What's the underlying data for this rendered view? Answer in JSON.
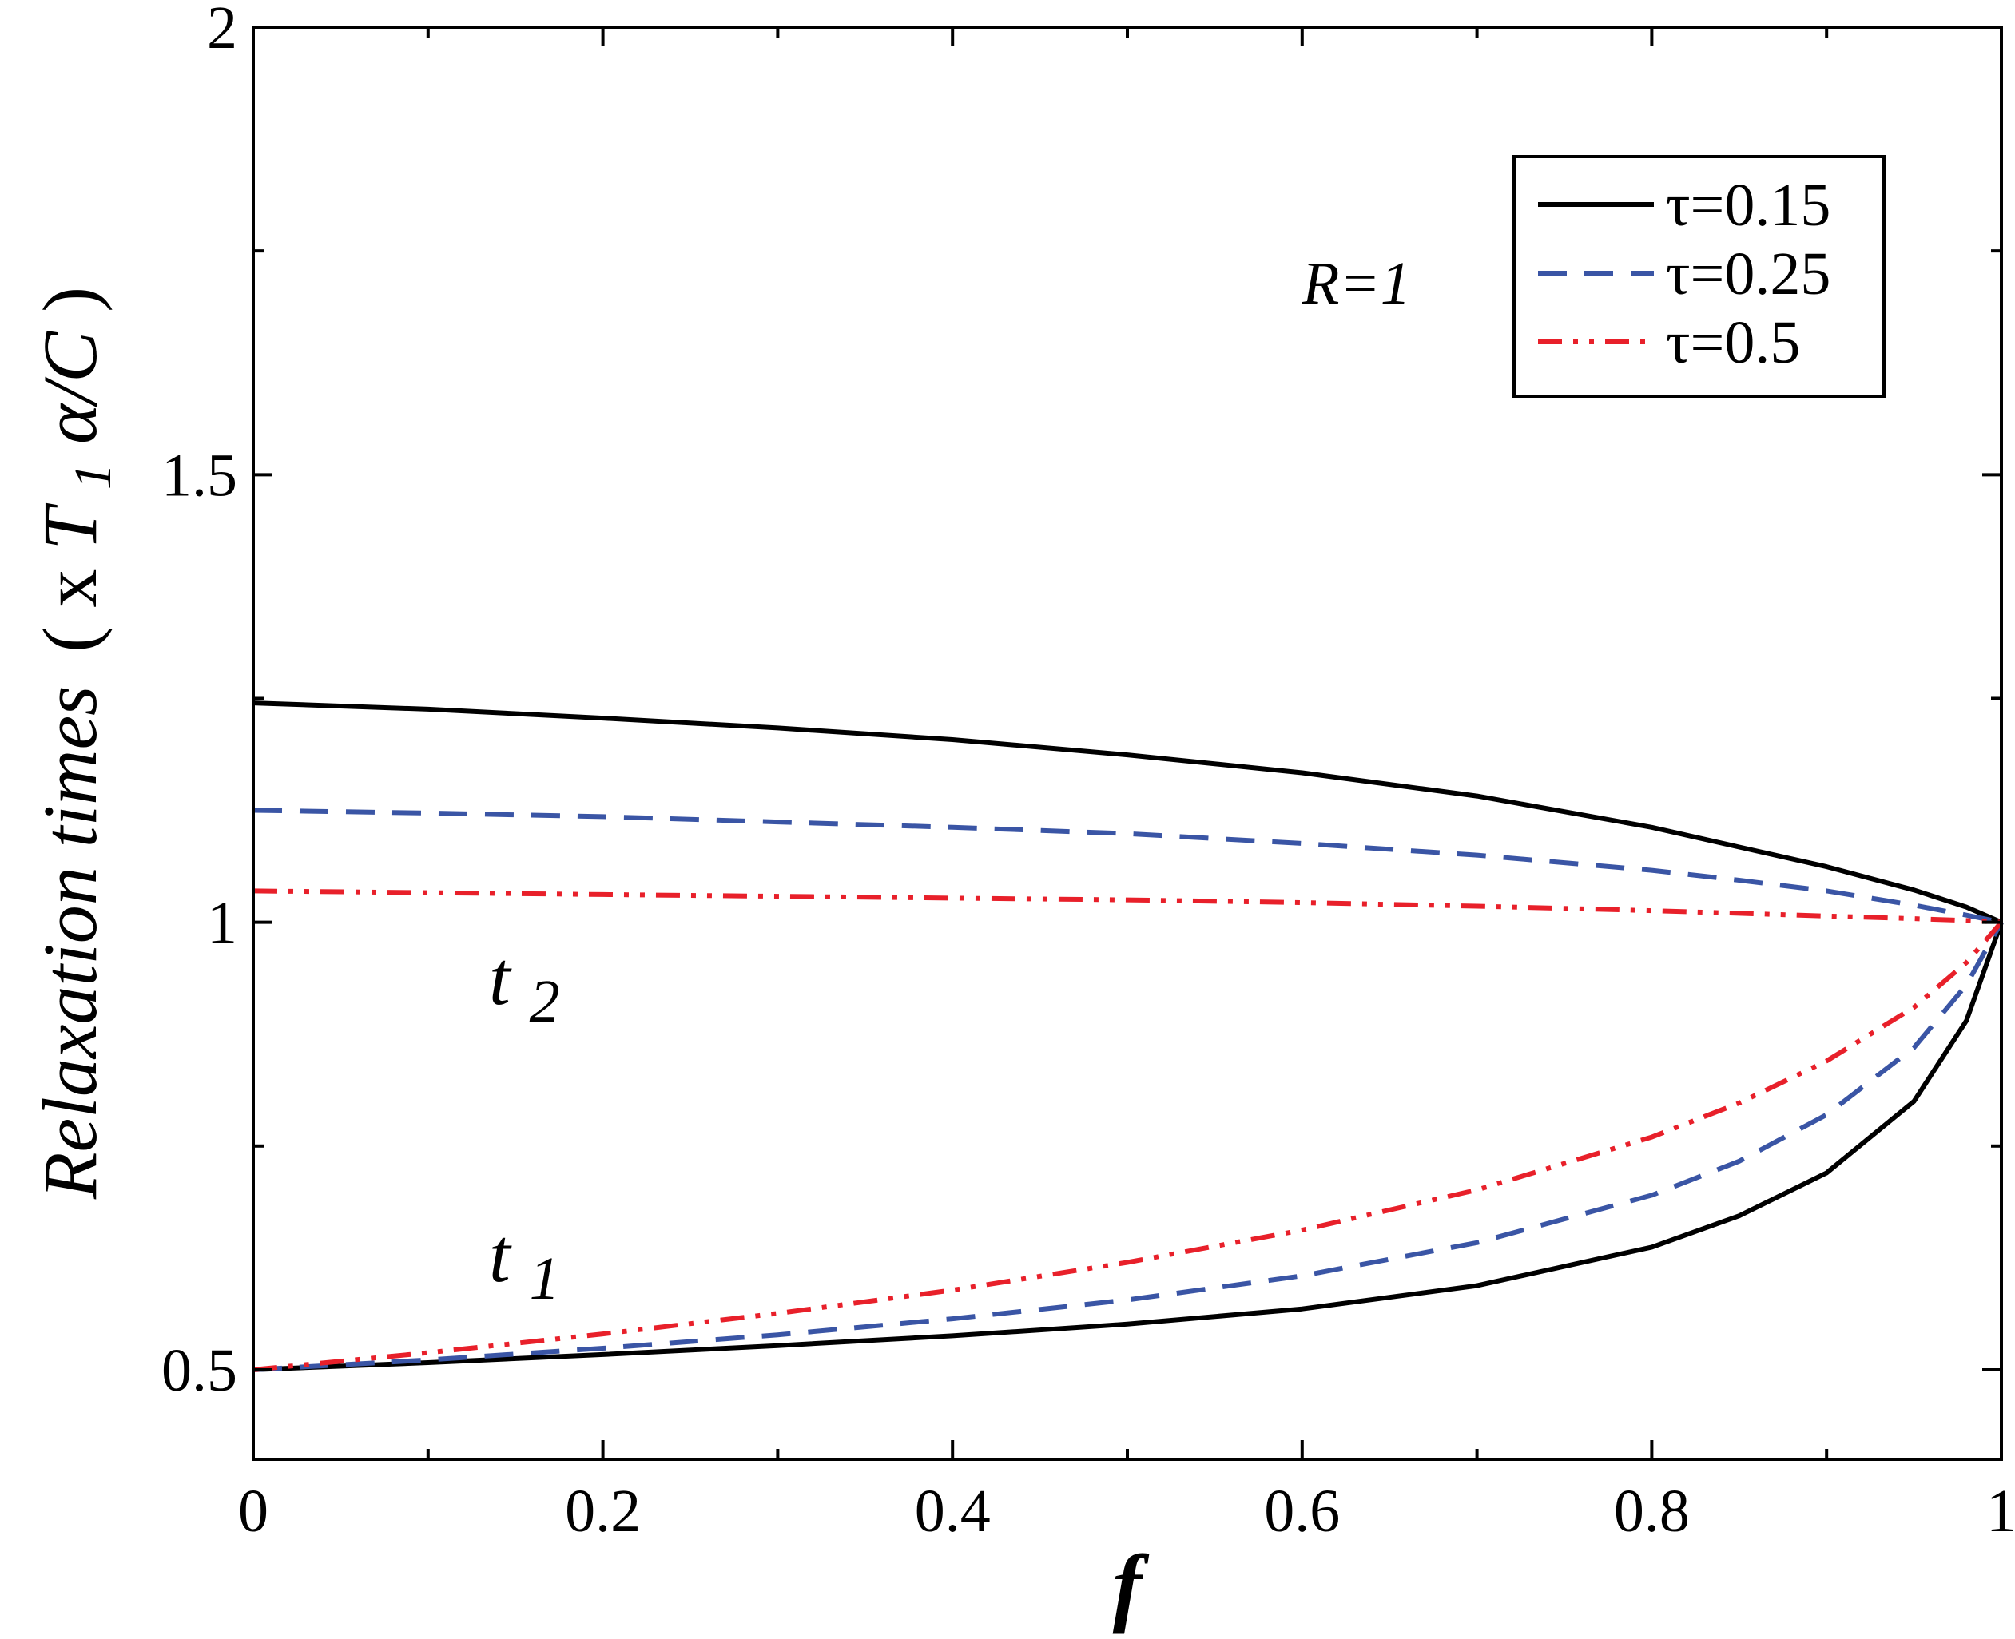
{
  "chart_data": {
    "type": "line",
    "title": "",
    "xlabel": "f",
    "ylabel": {
      "main": "Relaxation times",
      "paren_open": "(",
      "prefix": "x ",
      "T": "T",
      "T_sub": "1",
      "suffix": "α/C",
      "paren_close": ")"
    },
    "xlim": [
      0,
      1
    ],
    "ylim": [
      0.4,
      2
    ],
    "xticks": [
      0,
      0.2,
      0.4,
      0.6,
      0.8,
      1
    ],
    "xtick_labels": [
      "0",
      "0.2",
      "0.4",
      "0.6",
      "0.8",
      "1"
    ],
    "yticks": [
      0.5,
      1,
      1.5,
      2
    ],
    "ytick_labels": [
      "0.5",
      "1",
      "1.5",
      "2"
    ],
    "x": [
      0,
      0.1,
      0.2,
      0.3,
      0.4,
      0.5,
      0.6,
      0.7,
      0.8,
      0.85,
      0.9,
      0.95,
      0.98,
      1
    ],
    "series": [
      {
        "name": "τ=0.15",
        "branch": "t2",
        "color": "#000000",
        "style": "solid",
        "values": [
          1.245,
          1.238,
          1.228,
          1.217,
          1.204,
          1.187,
          1.167,
          1.141,
          1.106,
          1.084,
          1.062,
          1.036,
          1.017,
          1.0
        ]
      },
      {
        "name": "τ=0.25",
        "branch": "t2",
        "color": "#3a55a5",
        "style": "dashed",
        "values": [
          1.125,
          1.122,
          1.118,
          1.112,
          1.106,
          1.099,
          1.088,
          1.075,
          1.058,
          1.047,
          1.035,
          1.019,
          1.008,
          1.0
        ]
      },
      {
        "name": "τ=0.5",
        "branch": "t2",
        "color": "#e8202a",
        "style": "dashdotdot",
        "values": [
          1.035,
          1.033,
          1.031,
          1.029,
          1.027,
          1.025,
          1.022,
          1.018,
          1.013,
          1.01,
          1.007,
          1.004,
          1.002,
          1.0
        ]
      },
      {
        "name": "τ=0.15",
        "branch": "t1",
        "color": "#000000",
        "style": "solid",
        "values": [
          0.5,
          0.508,
          0.517,
          0.527,
          0.538,
          0.551,
          0.568,
          0.594,
          0.637,
          0.672,
          0.72,
          0.8,
          0.89,
          1.0
        ]
      },
      {
        "name": "τ=0.25",
        "branch": "t1",
        "color": "#3a55a5",
        "style": "dashed",
        "values": [
          0.5,
          0.511,
          0.524,
          0.539,
          0.557,
          0.578,
          0.605,
          0.642,
          0.695,
          0.733,
          0.785,
          0.86,
          0.93,
          1.0
        ]
      },
      {
        "name": "τ=0.5",
        "branch": "t1",
        "color": "#e8202a",
        "style": "dashdotdot",
        "values": [
          0.5,
          0.519,
          0.54,
          0.563,
          0.589,
          0.62,
          0.656,
          0.701,
          0.76,
          0.798,
          0.845,
          0.905,
          0.955,
          1.0
        ]
      }
    ],
    "legend": {
      "position": "top-right",
      "entries": [
        {
          "label": "τ=0.15",
          "color": "#000000",
          "style": "solid"
        },
        {
          "label": "τ=0.25",
          "color": "#3a55a5",
          "style": "dashed"
        },
        {
          "label": "τ=0.5",
          "color": "#e8202a",
          "style": "dashdotdot"
        }
      ]
    },
    "annotations": {
      "param_label": "R=1",
      "t2": {
        "main": "t",
        "sub": "2"
      },
      "t1": {
        "main": "t",
        "sub": "1"
      }
    }
  }
}
